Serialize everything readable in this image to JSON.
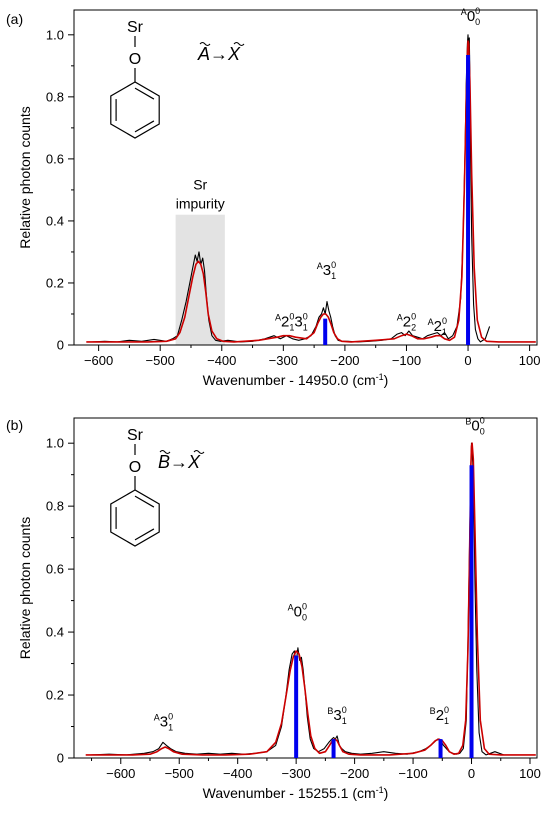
{
  "chart_data": [
    {
      "type": "line",
      "panel": "(a)",
      "transition": {
        "upper": "A",
        "arrow": "→",
        "lower": "X"
      },
      "molecule_atoms": [
        "Sr",
        "O"
      ],
      "xlabel": "Wavenumber - 14950.0 (cm",
      "xlabel_unit_sup": "-1",
      "xlabel_close": ")",
      "ylabel": "Relative photon counts",
      "xlim": [
        -640,
        112
      ],
      "ylim": [
        0,
        1.08
      ],
      "xticks": [
        -600,
        -500,
        -400,
        -300,
        -200,
        -100,
        0,
        100
      ],
      "yticks": [
        "0",
        "0.2",
        "0.4",
        "0.6",
        "0.8",
        "1.0"
      ],
      "ytick_values": [
        0,
        0.2,
        0.4,
        0.6,
        0.8,
        1.0
      ],
      "impurity_region": {
        "x0": -475,
        "x1": -395,
        "y_top": 0.42,
        "label": [
          "Sr",
          "impurity"
        ]
      },
      "series": [
        {
          "role": "experimental",
          "color": "#000000",
          "x": [
            -610,
            -590,
            -570,
            -550,
            -530,
            -510,
            -490,
            -480,
            -472,
            -465,
            -458,
            -452,
            -447,
            -443,
            -440,
            -437,
            -434,
            -431,
            -428,
            -425,
            -421,
            -416,
            -410,
            -402,
            -390,
            -370,
            -350,
            -330,
            -315,
            -305,
            -295,
            -285,
            -275,
            -265,
            -255,
            -247,
            -242,
            -238,
            -235,
            -232,
            -229,
            -226,
            -223,
            -220,
            -216,
            -211,
            -205,
            -195,
            -180,
            -160,
            -140,
            -125,
            -115,
            -108,
            -102,
            -96,
            -90,
            -82,
            -74,
            -66,
            -58,
            -50,
            -44,
            -38,
            -32,
            -25,
            -18,
            -12,
            -8,
            -5,
            -3,
            -1,
            0,
            1,
            2,
            3,
            4,
            6,
            9,
            12,
            16,
            20,
            28,
            35
          ],
          "y": [
            0.01,
            0.012,
            0.01,
            0.015,
            0.012,
            0.018,
            0.012,
            0.02,
            0.03,
            0.08,
            0.14,
            0.2,
            0.25,
            0.29,
            0.27,
            0.3,
            0.26,
            0.28,
            0.24,
            0.16,
            0.08,
            0.03,
            0.015,
            0.012,
            0.015,
            0.01,
            0.012,
            0.02,
            0.03,
            0.02,
            0.03,
            0.02,
            0.015,
            0.02,
            0.03,
            0.06,
            0.09,
            0.1,
            0.12,
            0.1,
            0.14,
            0.11,
            0.09,
            0.06,
            0.03,
            0.015,
            0.012,
            0.012,
            0.01,
            0.012,
            0.015,
            0.02,
            0.035,
            0.04,
            0.03,
            0.045,
            0.03,
            0.025,
            0.02,
            0.03,
            0.035,
            0.04,
            0.03,
            0.04,
            0.02,
            0.03,
            0.06,
            0.15,
            0.35,
            0.62,
            0.84,
            0.97,
            1.0,
            0.95,
            0.99,
            0.86,
            0.62,
            0.35,
            0.13,
            0.05,
            0.02,
            0.01,
            0.02,
            0.06
          ]
        },
        {
          "role": "simulation",
          "color": "#cc0000",
          "x": [
            -620,
            -600,
            -560,
            -520,
            -490,
            -475,
            -468,
            -460,
            -453,
            -447,
            -442,
            -438,
            -434,
            -430,
            -426,
            -422,
            -416,
            -408,
            -398,
            -380,
            -340,
            -310,
            -300,
            -290,
            -280,
            -262,
            -250,
            -244,
            -239,
            -235,
            -231,
            -227,
            -223,
            -218,
            -212,
            -205,
            -190,
            -150,
            -120,
            -108,
            -100,
            -92,
            -82,
            -72,
            -60,
            -52,
            -45,
            -38,
            -30,
            -22,
            -15,
            -10,
            -6,
            -3,
            -1,
            0,
            1,
            3,
            6,
            10,
            15,
            22,
            30,
            50,
            80,
            110
          ],
          "y": [
            0.01,
            0.01,
            0.01,
            0.01,
            0.012,
            0.02,
            0.04,
            0.09,
            0.16,
            0.22,
            0.26,
            0.27,
            0.26,
            0.23,
            0.17,
            0.1,
            0.045,
            0.02,
            0.012,
            0.01,
            0.015,
            0.025,
            0.03,
            0.03,
            0.025,
            0.02,
            0.04,
            0.07,
            0.09,
            0.1,
            0.1,
            0.09,
            0.07,
            0.04,
            0.02,
            0.012,
            0.01,
            0.015,
            0.02,
            0.03,
            0.035,
            0.03,
            0.02,
            0.02,
            0.025,
            0.03,
            0.03,
            0.02,
            0.015,
            0.025,
            0.08,
            0.22,
            0.5,
            0.78,
            0.94,
            0.98,
            0.97,
            0.85,
            0.55,
            0.25,
            0.08,
            0.025,
            0.012,
            0.01,
            0.01,
            0.01
          ]
        }
      ],
      "sticks": [
        {
          "x": 0,
          "y": 0.935,
          "color": "#0000ee"
        },
        {
          "x": -232,
          "y": 0.085,
          "color": "#0000ee"
        }
      ],
      "peak_labels": [
        {
          "x": 4,
          "y": 1.045,
          "sup_pre": "A",
          "main": "0",
          "sub": "0",
          "sup_post": "0"
        },
        {
          "x": -230,
          "y": 0.225,
          "sup_pre": "A",
          "main": "3",
          "sub": "1",
          "sup_post": "0"
        },
        {
          "x": -100,
          "y": 0.06,
          "sup_pre": "A",
          "main": "2",
          "sub": "2",
          "sup_post": "0"
        },
        {
          "x": -50,
          "y": 0.045,
          "sup_pre": "A",
          "main": "2",
          "sub": "1",
          "sup_post": "0"
        }
      ],
      "combo_label": {
        "x": -287,
        "y": 0.06,
        "sup_pre": "A",
        "main1": "2",
        "sub1": "1",
        "sup1": "0",
        "main2": "3",
        "sub2": "1",
        "sup2": "0"
      }
    },
    {
      "type": "line",
      "panel": "(b)",
      "transition": {
        "upper": "B",
        "arrow": "→",
        "lower": "X"
      },
      "molecule_atoms": [
        "Sr",
        "O"
      ],
      "xlabel": "Wavenumber - 15255.1 (cm",
      "xlabel_unit_sup": "-1",
      "xlabel_close": ")",
      "ylabel": "Relative photon counts",
      "xlim": [
        -680,
        112
      ],
      "ylim": [
        0,
        1.08
      ],
      "xticks": [
        -600,
        -500,
        -400,
        -300,
        -200,
        -100,
        0,
        100
      ],
      "yticks": [
        "0",
        "0.2",
        "0.4",
        "0.6",
        "0.8",
        "1.0"
      ],
      "ytick_values": [
        0,
        0.2,
        0.4,
        0.6,
        0.8,
        1.0
      ],
      "series": [
        {
          "role": "experimental",
          "color": "#000000",
          "x": [
            -650,
            -620,
            -590,
            -560,
            -545,
            -535,
            -528,
            -522,
            -515,
            -505,
            -490,
            -470,
            -450,
            -430,
            -410,
            -390,
            -370,
            -350,
            -335,
            -325,
            -318,
            -312,
            -307,
            -303,
            -300,
            -297,
            -294,
            -291,
            -288,
            -285,
            -281,
            -276,
            -270,
            -262,
            -252,
            -244,
            -239,
            -236,
            -233,
            -230,
            -226,
            -222,
            -216,
            -205,
            -190,
            -170,
            -150,
            -130,
            -110,
            -90,
            -78,
            -70,
            -64,
            -58,
            -53,
            -48,
            -43,
            -38,
            -32,
            -26,
            -20,
            -14,
            -9,
            -6,
            -3,
            -1,
            0,
            1,
            2,
            4,
            6,
            9,
            13,
            18,
            25,
            40,
            55
          ],
          "y": [
            0.01,
            0.012,
            0.01,
            0.015,
            0.02,
            0.03,
            0.05,
            0.04,
            0.03,
            0.02,
            0.015,
            0.012,
            0.015,
            0.012,
            0.015,
            0.012,
            0.015,
            0.02,
            0.04,
            0.1,
            0.19,
            0.28,
            0.33,
            0.34,
            0.3,
            0.35,
            0.31,
            0.32,
            0.28,
            0.22,
            0.13,
            0.06,
            0.03,
            0.02,
            0.03,
            0.05,
            0.06,
            0.065,
            0.06,
            0.07,
            0.04,
            0.03,
            0.02,
            0.015,
            0.012,
            0.015,
            0.02,
            0.015,
            0.012,
            0.02,
            0.03,
            0.04,
            0.05,
            0.06,
            0.055,
            0.04,
            0.03,
            0.02,
            0.015,
            0.012,
            0.015,
            0.03,
            0.12,
            0.38,
            0.72,
            0.93,
            1.0,
            0.97,
            0.94,
            0.8,
            0.55,
            0.28,
            0.08,
            0.02,
            0.01,
            0.02,
            0.01
          ]
        },
        {
          "role": "simulation",
          "color": "#cc0000",
          "x": [
            -660,
            -620,
            -580,
            -550,
            -538,
            -530,
            -524,
            -518,
            -510,
            -495,
            -460,
            -420,
            -380,
            -350,
            -335,
            -325,
            -317,
            -310,
            -305,
            -300,
            -295,
            -290,
            -285,
            -280,
            -275,
            -268,
            -260,
            -250,
            -243,
            -238,
            -234,
            -230,
            -226,
            -220,
            -210,
            -190,
            -140,
            -100,
            -80,
            -70,
            -62,
            -56,
            -50,
            -44,
            -38,
            -30,
            -22,
            -15,
            -10,
            -6,
            -3,
            -1,
            0,
            1,
            3,
            6,
            10,
            15,
            22,
            30,
            50,
            80,
            110
          ],
          "y": [
            0.01,
            0.01,
            0.01,
            0.012,
            0.02,
            0.03,
            0.035,
            0.03,
            0.02,
            0.012,
            0.01,
            0.01,
            0.012,
            0.02,
            0.05,
            0.11,
            0.2,
            0.28,
            0.32,
            0.34,
            0.33,
            0.29,
            0.22,
            0.14,
            0.07,
            0.03,
            0.015,
            0.02,
            0.04,
            0.055,
            0.06,
            0.055,
            0.04,
            0.02,
            0.012,
            0.01,
            0.01,
            0.015,
            0.025,
            0.04,
            0.055,
            0.06,
            0.055,
            0.04,
            0.02,
            0.012,
            0.015,
            0.04,
            0.12,
            0.35,
            0.7,
            0.93,
            0.99,
            1.0,
            0.95,
            0.72,
            0.38,
            0.12,
            0.03,
            0.012,
            0.01,
            0.01,
            0.01
          ]
        }
      ],
      "sticks": [
        {
          "x": 0,
          "y": 0.93,
          "color": "#0000ee"
        },
        {
          "x": -300,
          "y": 0.325,
          "color": "#0000ee"
        },
        {
          "x": -236,
          "y": 0.06,
          "color": "#0000ee"
        },
        {
          "x": -53,
          "y": 0.06,
          "color": "#0000ee"
        }
      ],
      "peak_labels": [
        {
          "x": 6,
          "y": 1.04,
          "sup_pre": "B",
          "main": "0",
          "sub": "0",
          "sup_post": "0"
        },
        {
          "x": -298,
          "y": 0.45,
          "sup_pre": "A",
          "main": "0",
          "sub": "0",
          "sup_post": "0"
        },
        {
          "x": -230,
          "y": 0.12,
          "sup_pre": "B",
          "main": "3",
          "sub": "1",
          "sup_post": "0"
        },
        {
          "x": -55,
          "y": 0.12,
          "sup_pre": "B",
          "main": "2",
          "sub": "1",
          "sup_post": "0"
        },
        {
          "x": -527,
          "y": 0.1,
          "sup_pre": "A",
          "main": "3",
          "sub": "1",
          "sup_post": "0"
        }
      ]
    }
  ]
}
